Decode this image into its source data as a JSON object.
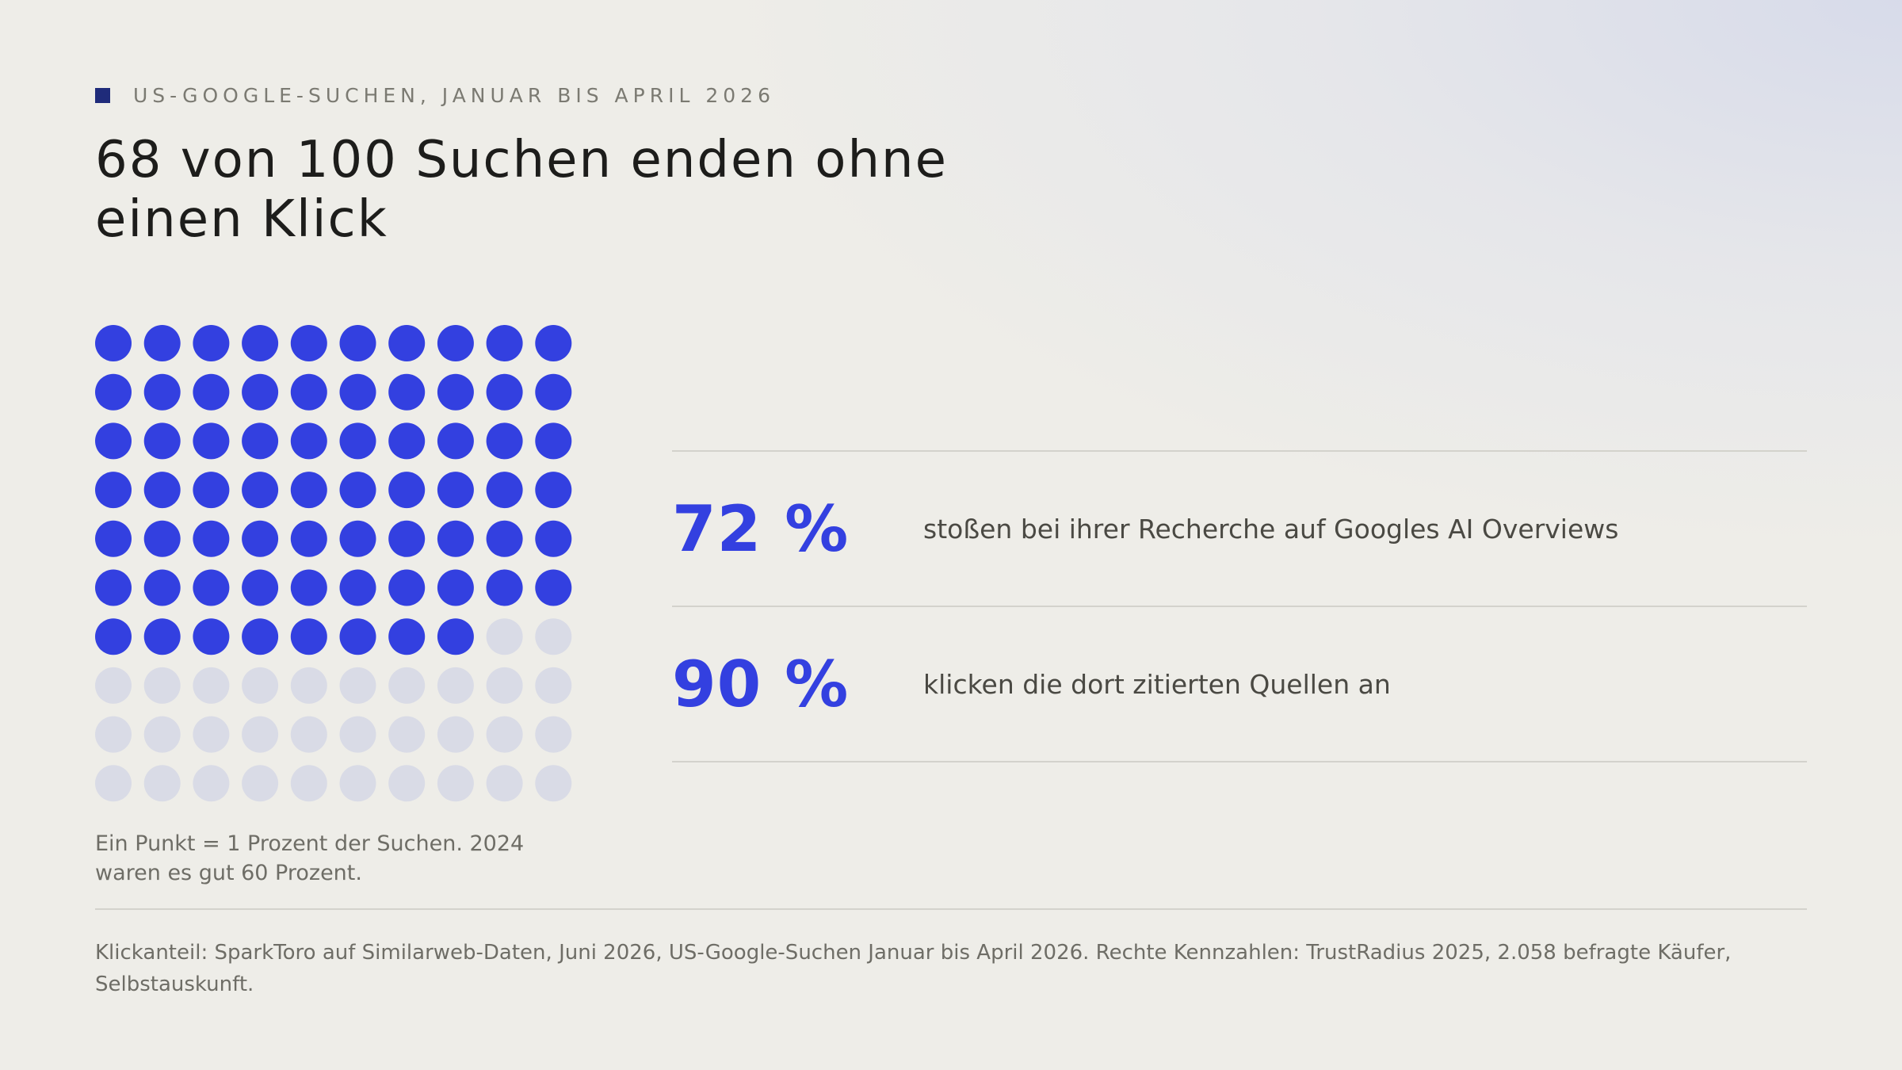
{
  "header": {
    "eyebrow": "US-Google-Suchen, Januar bis April 2026",
    "title": "68 von 100 Suchen enden ohne einen Klick"
  },
  "chart_data": {
    "type": "waffle",
    "total": 100,
    "highlighted": 68,
    "rows": 10,
    "columns": 10,
    "colors": {
      "highlighted": "#3340e0",
      "rest": "#d9dbe6"
    }
  },
  "note": "Ein Punkt = 1 Prozent der Suchen. 2024 waren es gut 60 Prozent.",
  "stats": [
    {
      "value": "72 %",
      "description": "stoßen bei ihrer Recherche auf Googles AI Overviews"
    },
    {
      "value": "90 %",
      "description": "klicken die dort zitierten Quellen an"
    }
  ],
  "source": "Klickanteil: SparkToro auf Similarweb-Daten, Juni 2026, US-Google-Suchen Januar bis April 2026. Rechte Kennzahlen: TrustRadius 2025, 2.058 befragte Käufer, Selbstauskunft.",
  "colors": {
    "accent": "#3340e0",
    "eyebrow_square": "#1f2b7a",
    "background": "#eeede8"
  }
}
